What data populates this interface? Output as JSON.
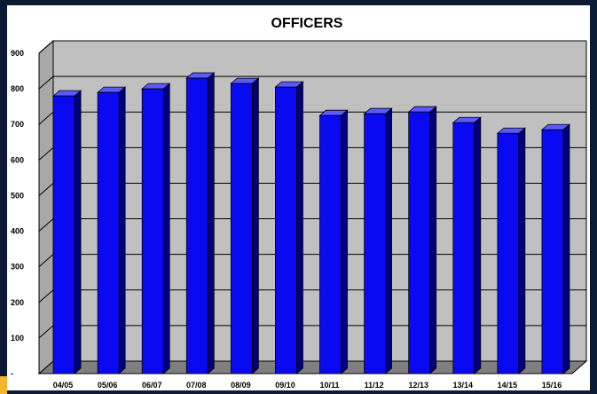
{
  "chart_data": {
    "type": "bar",
    "title": "OFFICERS",
    "categories": [
      "04/05",
      "05/06",
      "06/07",
      "07/08",
      "08/09",
      "09/10",
      "10/11",
      "11/12",
      "12/13",
      "13/14",
      "14/15",
      "15/16"
    ],
    "values": [
      780,
      790,
      800,
      830,
      815,
      805,
      725,
      730,
      735,
      705,
      675,
      685
    ],
    "ylim": [
      0,
      900
    ],
    "yticks": [
      "-",
      "100",
      "200",
      "300",
      "400",
      "500",
      "600",
      "700",
      "800",
      "900"
    ],
    "grid": true,
    "style": "3d",
    "colors": {
      "bar_front": "#0a0af2",
      "bar_side": "#00007a",
      "bar_top": "#5a5aff",
      "plot_back": "#c0c0c0",
      "floor": "#7f7f7f",
      "frame": "#0c1a33"
    }
  }
}
